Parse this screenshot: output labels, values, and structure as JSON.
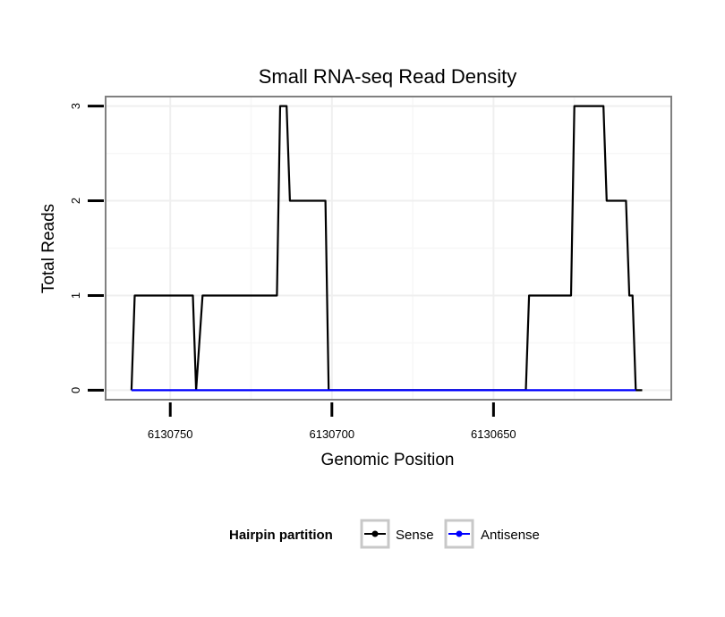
{
  "chart_data": {
    "type": "line",
    "title": "Small RNA-seq Read Density",
    "xlabel": "Genomic Position",
    "ylabel": "Total Reads",
    "xlim": [
      6130770,
      6130595
    ],
    "x_reversed": true,
    "ylim": [
      -0.1,
      3.1
    ],
    "x_ticks": [
      6130750,
      6130700,
      6130650
    ],
    "x_tick_labels": [
      "6130750",
      "6130700",
      "6130650"
    ],
    "y_ticks": [
      0,
      1,
      2,
      3
    ],
    "y_tick_labels": [
      "0",
      "1",
      "2",
      "3"
    ],
    "grid": true,
    "legend": {
      "title": "Hairpin partition",
      "position": "bottom",
      "entries": [
        "Sense",
        "Antisense"
      ]
    },
    "series": [
      {
        "name": "Sense",
        "color": "#000000",
        "points": [
          [
            6130762,
            0
          ],
          [
            6130761,
            1
          ],
          [
            6130743,
            1
          ],
          [
            6130742,
            0
          ],
          [
            6130740,
            1
          ],
          [
            6130717,
            1
          ],
          [
            6130716,
            3
          ],
          [
            6130714,
            3
          ],
          [
            6130713,
            2
          ],
          [
            6130702,
            2
          ],
          [
            6130701,
            0
          ],
          [
            6130640,
            0
          ],
          [
            6130639,
            1
          ],
          [
            6130626,
            1
          ],
          [
            6130625,
            3
          ],
          [
            6130616,
            3
          ],
          [
            6130615,
            2
          ],
          [
            6130609,
            2
          ],
          [
            6130608,
            1
          ],
          [
            6130607,
            1
          ],
          [
            6130606,
            0
          ],
          [
            6130604,
            0
          ]
        ]
      },
      {
        "name": "Antisense",
        "color": "#0000ff",
        "points": [
          [
            6130762,
            0
          ],
          [
            6130606,
            0
          ]
        ]
      }
    ]
  }
}
